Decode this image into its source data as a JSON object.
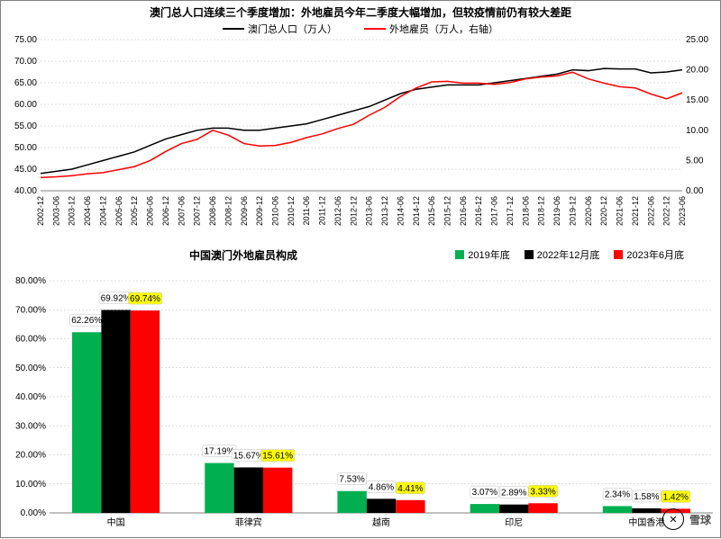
{
  "watermark": {
    "logo_label": "✕",
    "text": "雪球"
  },
  "line_chart": {
    "type": "line",
    "title": "澳门总人口连续三个季度增加：外地雇员今年二季度大幅增加，但较疫情前仍有较大差距",
    "title_fontsize": 12,
    "background_color": "#ffffff",
    "grid_color": "#bfbfbf",
    "y_left": {
      "min": 40.0,
      "max": 75.0,
      "step": 5.0
    },
    "y_right": {
      "min": 0.0,
      "max": 25.0,
      "step": 5.0
    },
    "x_labels": [
      "2002-12",
      "2003-06",
      "2003-12",
      "2004-06",
      "2004-12",
      "2005-06",
      "2005-12",
      "2006-06",
      "2006-12",
      "2007-06",
      "2007-12",
      "2008-06",
      "2008-12",
      "2009-06",
      "2009-12",
      "2010-06",
      "2010-12",
      "2011-06",
      "2011-12",
      "2012-06",
      "2012-12",
      "2013-06",
      "2013-12",
      "2014-06",
      "2014-12",
      "2015-06",
      "2015-12",
      "2016-06",
      "2016-12",
      "2017-06",
      "2017-12",
      "2018-06",
      "2018-12",
      "2019-06",
      "2019-12",
      "2020-06",
      "2020-12",
      "2021-06",
      "2021-12",
      "2022-06",
      "2022-12",
      "2023-06"
    ],
    "series": [
      {
        "name": "澳门总人口（万人）",
        "color": "#000000",
        "axis": "left",
        "values": [
          44.0,
          44.5,
          45.0,
          46.0,
          47.0,
          48.0,
          49.0,
          50.5,
          52.0,
          53.0,
          54.0,
          54.5,
          54.5,
          54.0,
          54.0,
          54.5,
          55.0,
          55.5,
          56.5,
          57.5,
          58.5,
          59.5,
          61.0,
          62.5,
          63.5,
          64.0,
          64.5,
          64.5,
          64.5,
          65.0,
          65.5,
          66.0,
          66.5,
          67.0,
          68.0,
          67.8,
          68.3,
          68.2,
          68.2,
          67.3,
          67.5,
          68.0
        ]
      },
      {
        "name": "外地雇员（万人，右轴）",
        "color": "#ff0000",
        "axis": "right",
        "values": [
          2.2,
          2.3,
          2.5,
          2.8,
          3.0,
          3.5,
          4.0,
          5.0,
          6.5,
          7.8,
          8.5,
          10.0,
          9.2,
          7.8,
          7.4,
          7.5,
          8.0,
          8.8,
          9.4,
          10.3,
          11.0,
          12.5,
          13.8,
          15.6,
          17.0,
          18.0,
          18.1,
          17.8,
          17.8,
          17.6,
          17.9,
          18.5,
          18.8,
          19.0,
          19.6,
          18.5,
          17.8,
          17.2,
          17.0,
          16.0,
          15.2,
          16.2
        ]
      }
    ]
  },
  "bar_chart": {
    "type": "bar",
    "title": "中国澳门外地雇员构成",
    "title_fontsize": 12,
    "background_color": "#ffffff",
    "grid_color": "#bfbfbf",
    "y": {
      "min": 0.0,
      "max": 80.0,
      "step": 10.0,
      "suffix": "%"
    },
    "categories": [
      "中国",
      "菲律宾",
      "越南",
      "印尼",
      "中国香港"
    ],
    "series": [
      {
        "name": "2019年底",
        "color": "#00b050",
        "values": [
          62.26,
          17.19,
          7.53,
          3.07,
          2.34
        ]
      },
      {
        "name": "2022年12月底",
        "color": "#000000",
        "values": [
          69.92,
          15.67,
          4.86,
          2.89,
          1.58
        ]
      },
      {
        "name": "2023年6月底",
        "color": "#ff0000",
        "values": [
          69.74,
          15.61,
          4.41,
          3.33,
          1.42
        ],
        "label_highlight": "#ffff00"
      }
    ],
    "bar_width": 0.22
  }
}
